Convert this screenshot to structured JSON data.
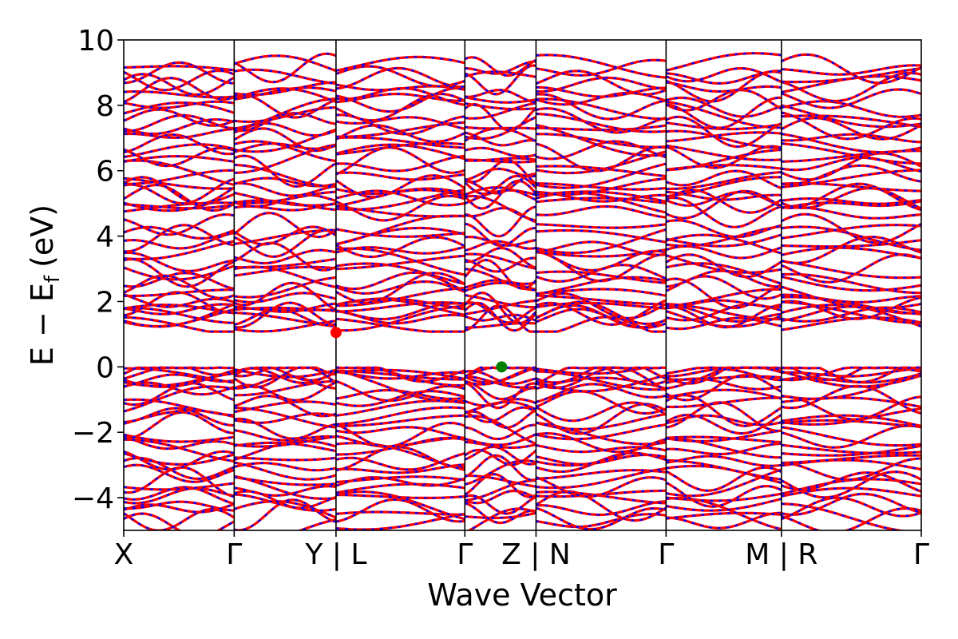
{
  "chart_data": {
    "type": "line",
    "title": "",
    "xlabel": "Wave Vector",
    "ylabel": "E − E",
    "ylabel_subscript": "f",
    "ylabel_unit": "(eV)",
    "ylim": [
      -5,
      10
    ],
    "yticks": [
      {
        "value": -4,
        "label": "−4"
      },
      {
        "value": -2,
        "label": "−2"
      },
      {
        "value": 0,
        "label": "0"
      },
      {
        "value": 2,
        "label": "2"
      },
      {
        "value": 4,
        "label": "4"
      },
      {
        "value": 6,
        "label": "6"
      },
      {
        "value": 8,
        "label": "8"
      },
      {
        "value": 10,
        "label": "10"
      }
    ],
    "xlim": [
      0,
      6.5
    ],
    "kpath": [
      {
        "pos": 0.0,
        "label": "X"
      },
      {
        "pos": 0.9,
        "label": "Γ"
      },
      {
        "pos": 1.73,
        "label": "Y | L"
      },
      {
        "pos": 2.78,
        "label": "Γ"
      },
      {
        "pos": 3.36,
        "label": "Z | N"
      },
      {
        "pos": 4.42,
        "label": "Γ"
      },
      {
        "pos": 5.36,
        "label": "M | R"
      },
      {
        "pos": 6.5,
        "label": "Γ"
      }
    ],
    "segments": [
      [
        0.0,
        0.9
      ],
      [
        0.9,
        1.73
      ],
      [
        1.73,
        2.78
      ],
      [
        2.78,
        3.36
      ],
      [
        3.36,
        4.42
      ],
      [
        4.42,
        5.36
      ],
      [
        5.36,
        6.5
      ]
    ],
    "band_colors": {
      "primary": "#ff0000",
      "secondary": "#0000ff"
    },
    "band_count": 72,
    "band_energy_range": [
      -4.9,
      9.3
    ],
    "markers": [
      {
        "name": "cbm",
        "x": 1.73,
        "y": 1.05,
        "color": "#ff0000"
      },
      {
        "name": "vbm",
        "x": 3.08,
        "y": 0.0,
        "color": "#008000"
      }
    ],
    "grid": false,
    "legend": "none"
  }
}
